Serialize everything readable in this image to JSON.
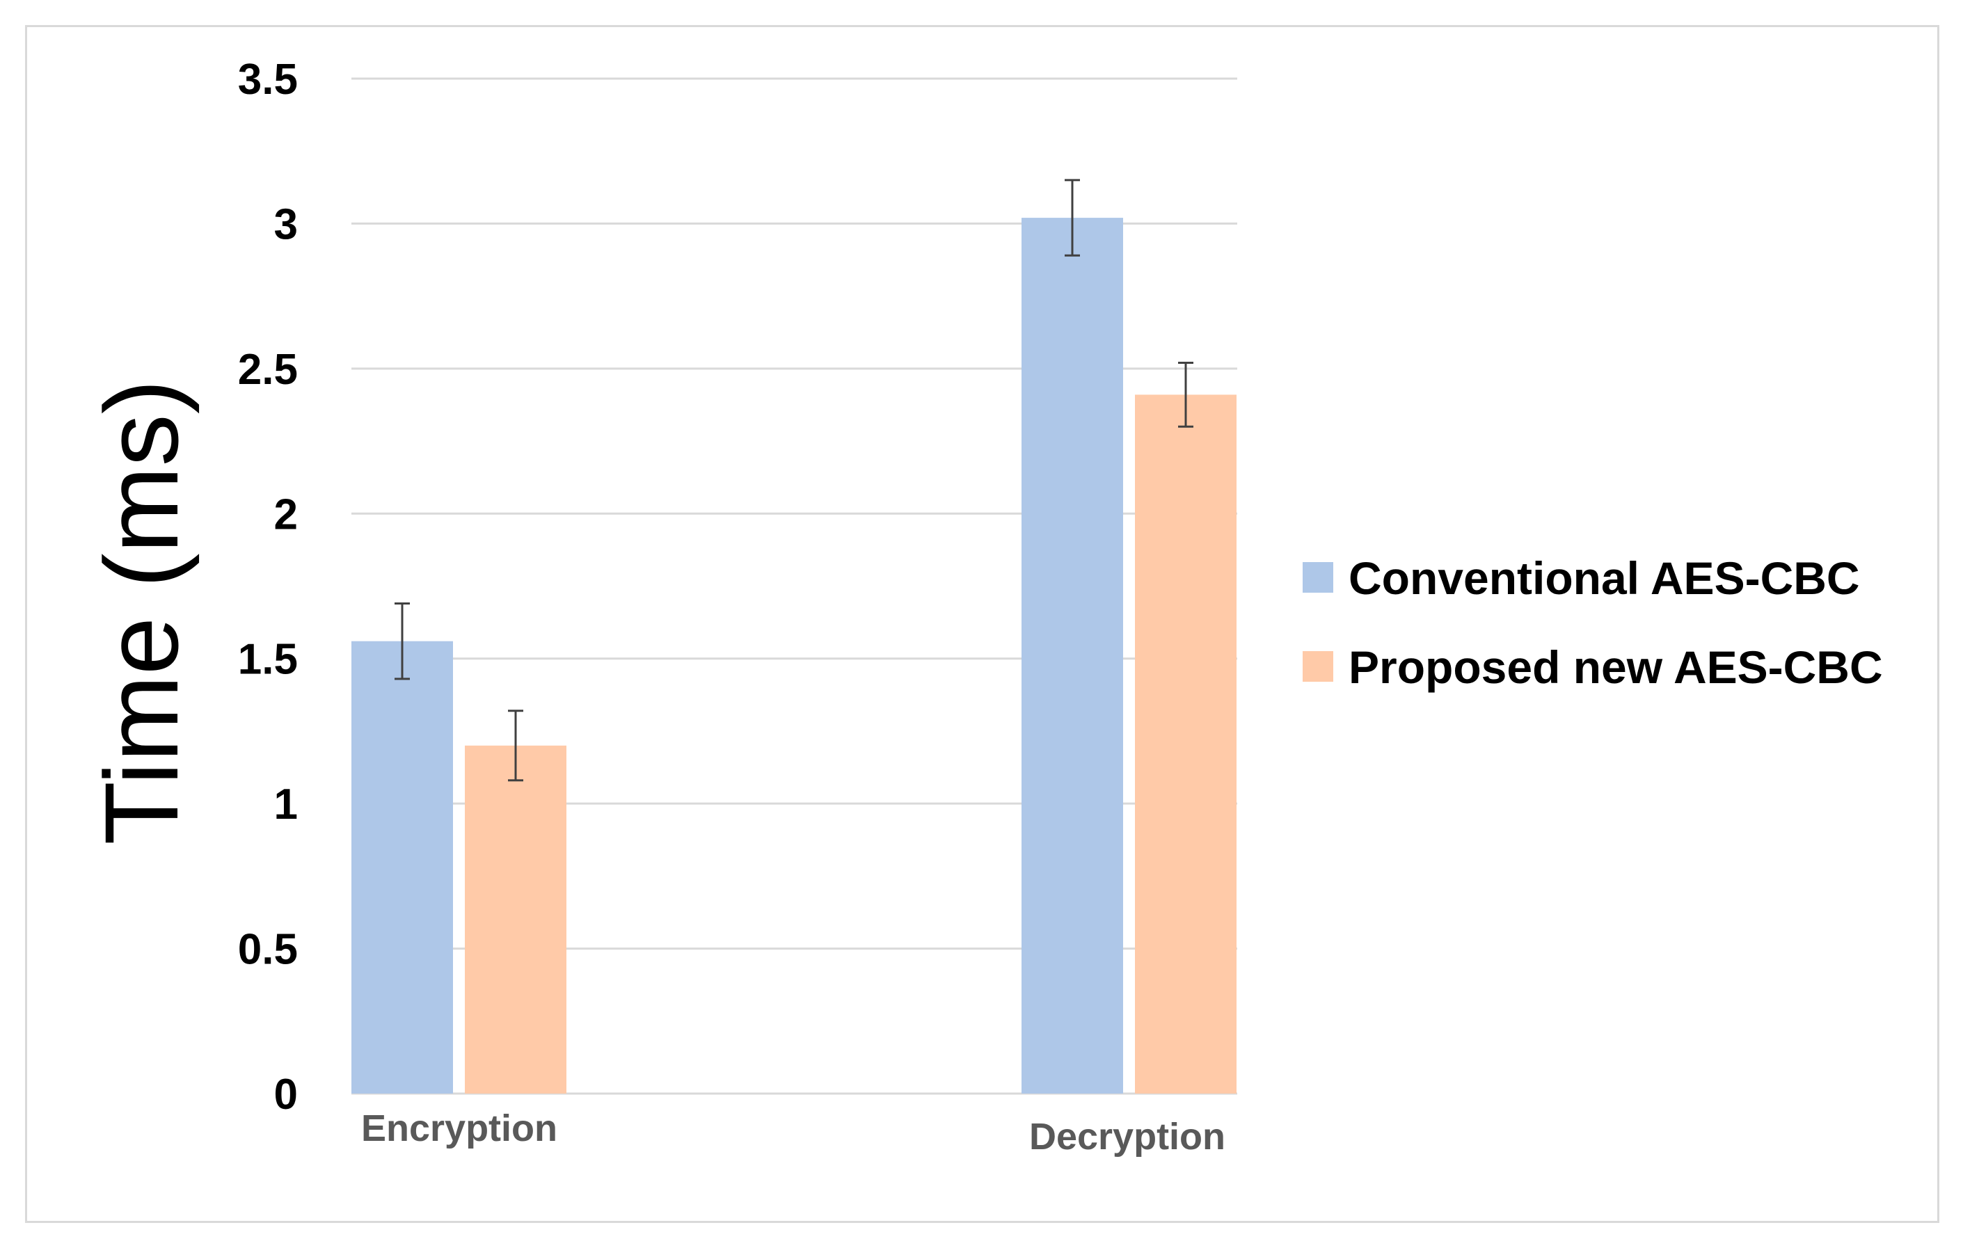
{
  "chart_data": {
    "type": "bar",
    "categories": [
      "Encryption",
      "Decryption"
    ],
    "series": [
      {
        "name": "Conventional AES-CBC",
        "values": [
          1.56,
          3.02
        ],
        "errors": [
          0.13,
          0.13
        ],
        "color": "#aec7e8"
      },
      {
        "name": "Proposed new AES-CBC",
        "values": [
          1.2,
          2.41
        ],
        "errors": [
          0.12,
          0.11
        ],
        "color": "#ffcaa8"
      }
    ],
    "title": "",
    "xlabel": "",
    "ylabel": "Time (ms)",
    "ylim": [
      0,
      3.5
    ],
    "yticks": [
      "0",
      "0.5",
      "1",
      "1.5",
      "2",
      "2.5",
      "3",
      "3.5"
    ],
    "grid": true,
    "legend_position": "right"
  }
}
